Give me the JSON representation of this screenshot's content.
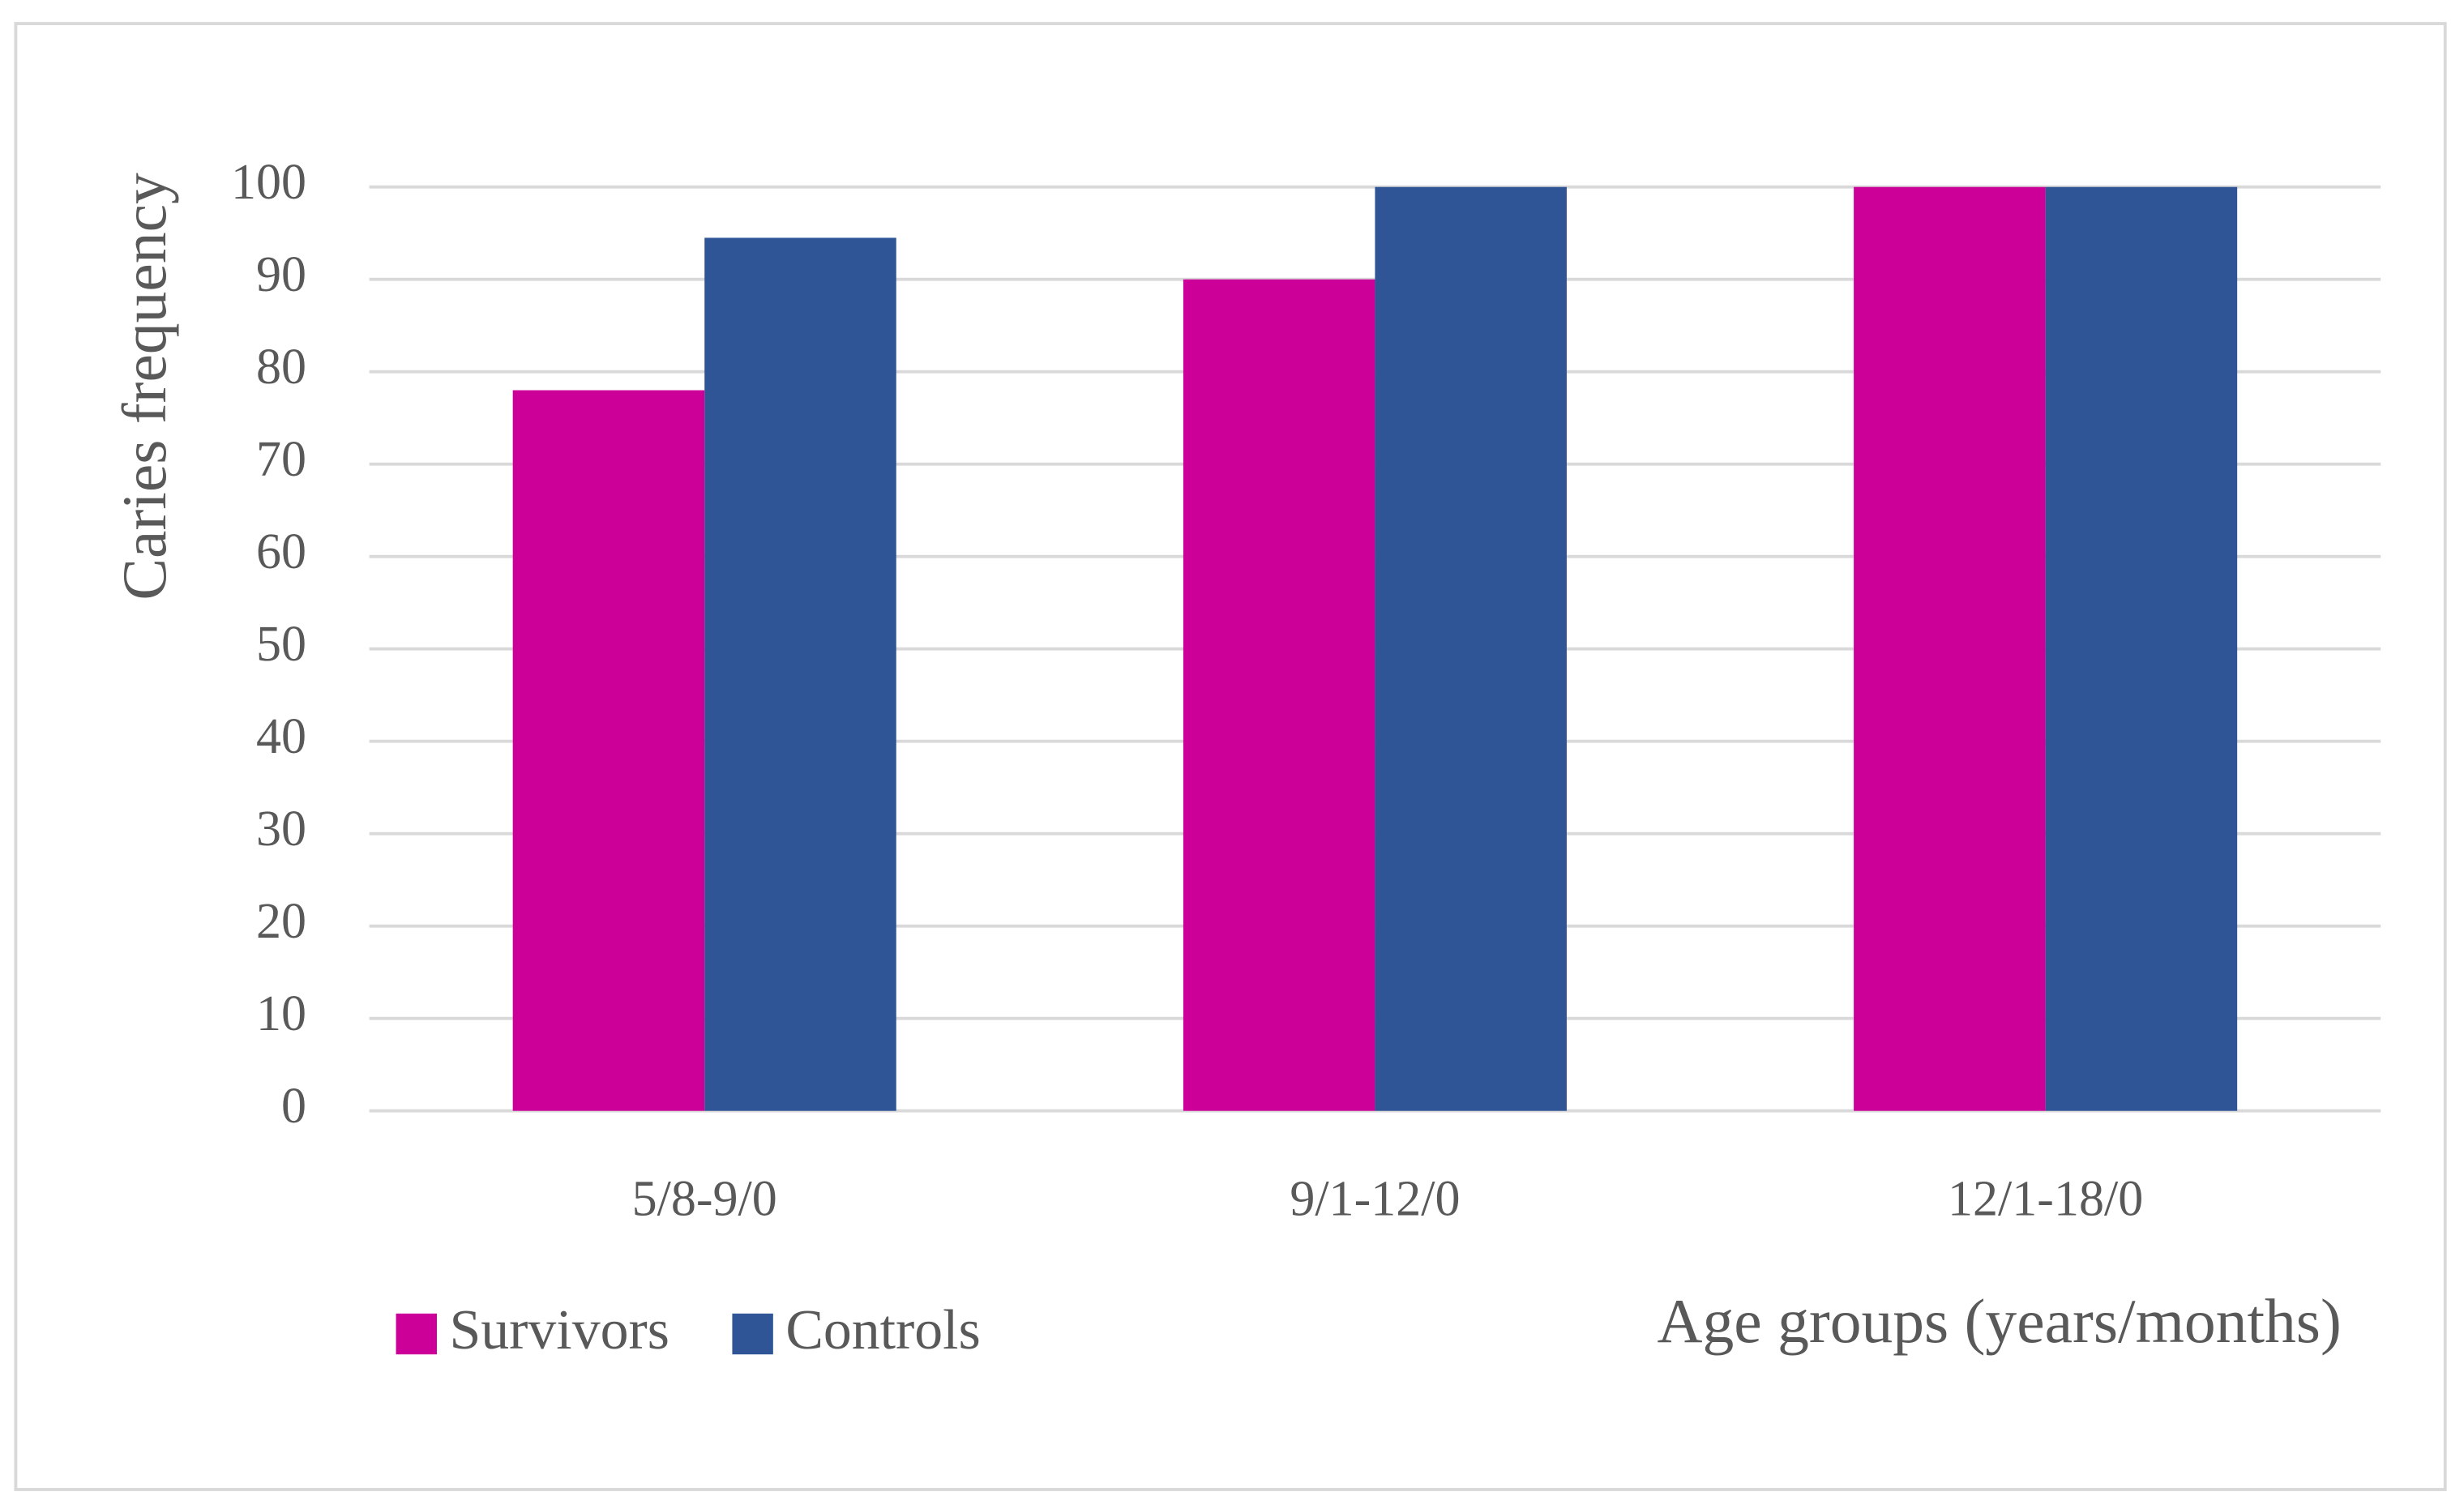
{
  "chart_data": {
    "type": "bar",
    "categories": [
      "5/8-9/0",
      "9/1-12/0",
      "12/1-18/0"
    ],
    "series": [
      {
        "name": "Survivors",
        "color": "#cc0099",
        "values": [
          78,
          90,
          100
        ]
      },
      {
        "name": "Controls",
        "color": "#2f5597",
        "values": [
          94.5,
          100,
          100
        ]
      }
    ],
    "y_label": "Caries frequency",
    "x_label": "Age groups (years/months)",
    "ylim": [
      0,
      100
    ],
    "yticks": [
      0,
      10,
      20,
      30,
      40,
      50,
      60,
      70,
      80,
      90,
      100
    ],
    "grid": true,
    "legend": "bottom-left"
  }
}
